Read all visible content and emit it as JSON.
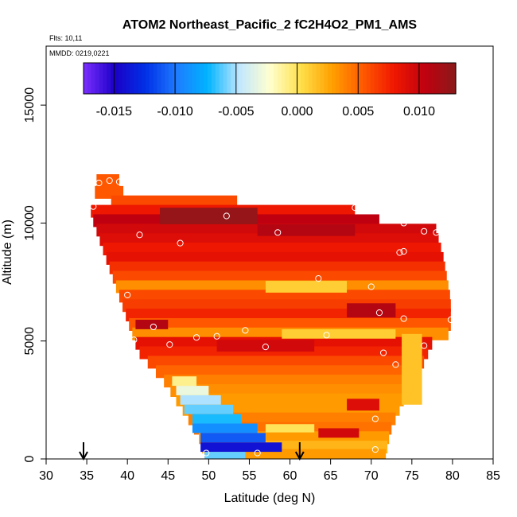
{
  "chart_data": {
    "type": "heatmap",
    "title": "ATOM2 Northeast_Pacific_2 fC2H4O2_PM1_AMS",
    "flights_label": "Flts: 10,11",
    "dates_label": "MMDD: 0219,0221",
    "xlabel": "Latitude (deg N)",
    "ylabel": "Altitude (m)",
    "xlim": [
      30,
      85
    ],
    "ylim": [
      0,
      17500
    ],
    "xticks": [
      30,
      35,
      40,
      45,
      50,
      55,
      60,
      65,
      70,
      75,
      80,
      85
    ],
    "xtick_labels": [
      "30",
      "35",
      "40",
      "45",
      "50",
      "55",
      "60",
      "65",
      "70",
      "75",
      "80",
      "85"
    ],
    "yticks": [
      0,
      5000,
      10000,
      15000
    ],
    "ytick_labels": [
      "0",
      "5000",
      "10000",
      "15000"
    ],
    "colorbar": {
      "range": [
        -0.0175,
        0.013
      ],
      "ticks": [
        -0.015,
        -0.01,
        -0.005,
        0.0,
        0.005,
        0.01
      ],
      "tick_labels": [
        "-0.015",
        "-0.010",
        "-0.005",
        "0.000",
        "0.005",
        "0.010"
      ],
      "colors": [
        "#7b2fff",
        "#1b00c8",
        "#0030e6",
        "#1e7bff",
        "#00b4ff",
        "#bfe6ff",
        "#ffffd0",
        "#ffe04a",
        "#ffa000",
        "#ff5a00",
        "#f01800",
        "#c00010",
        "#8a1a1a"
      ]
    },
    "arrows_latitude": [
      34.6,
      61.2
    ],
    "rows": [
      {
        "alt": 11800,
        "lat_min": 36.2,
        "lat_max": 39.0,
        "value": 0.0055
      },
      {
        "alt": 11300,
        "lat_min": 36.0,
        "lat_max": 39.5,
        "value": 0.0055
      },
      {
        "alt": 10900,
        "lat_min": 38.0,
        "lat_max": 53.5,
        "value": 0.006
      },
      {
        "alt": 10500,
        "lat_min": 35.5,
        "lat_max": 68.0,
        "value": 0.008
      },
      {
        "alt": 10100,
        "lat_min": 35.8,
        "lat_max": 71.0,
        "value": 0.0105
      },
      {
        "alt": 9700,
        "lat_min": 36.2,
        "lat_max": 78.0,
        "value": 0.0095
      },
      {
        "alt": 9300,
        "lat_min": 36.6,
        "lat_max": 78.3,
        "value": 0.009
      },
      {
        "alt": 8900,
        "lat_min": 37.0,
        "lat_max": 78.6,
        "value": 0.008
      },
      {
        "alt": 8500,
        "lat_min": 37.4,
        "lat_max": 78.9,
        "value": 0.0085
      },
      {
        "alt": 8100,
        "lat_min": 37.8,
        "lat_max": 79.1,
        "value": 0.007
      },
      {
        "alt": 7700,
        "lat_min": 38.2,
        "lat_max": 79.3,
        "value": 0.006
      },
      {
        "alt": 7300,
        "lat_min": 38.6,
        "lat_max": 79.5,
        "value": 0.0035
      },
      {
        "alt": 6900,
        "lat_min": 39.0,
        "lat_max": 79.7,
        "value": 0.006
      },
      {
        "alt": 6500,
        "lat_min": 39.4,
        "lat_max": 79.8,
        "value": 0.0065
      },
      {
        "alt": 6100,
        "lat_min": 39.8,
        "lat_max": 79.8,
        "value": 0.0075
      },
      {
        "alt": 5700,
        "lat_min": 40.2,
        "lat_max": 79.8,
        "value": 0.0055
      },
      {
        "alt": 5300,
        "lat_min": 40.6,
        "lat_max": 79.5,
        "value": 0.0035
      },
      {
        "alt": 4900,
        "lat_min": 41.0,
        "lat_max": 77.5,
        "value": 0.0085
      },
      {
        "alt": 4500,
        "lat_min": 41.5,
        "lat_max": 77.0,
        "value": 0.0075
      },
      {
        "alt": 4100,
        "lat_min": 42.5,
        "lat_max": 76.5,
        "value": 0.006
      },
      {
        "alt": 3700,
        "lat_min": 43.5,
        "lat_max": 75.5,
        "value": 0.005
      },
      {
        "alt": 3300,
        "lat_min": 44.5,
        "lat_max": 75.0,
        "value": 0.004
      },
      {
        "alt": 2900,
        "lat_min": 45.3,
        "lat_max": 74.5,
        "value": 0.0035
      },
      {
        "alt": 2500,
        "lat_min": 46.0,
        "lat_max": 74.0,
        "value": 0.003
      },
      {
        "alt": 2100,
        "lat_min": 46.8,
        "lat_max": 73.5,
        "value": 0.003
      },
      {
        "alt": 1700,
        "lat_min": 47.5,
        "lat_max": 73.0,
        "value": 0.004
      },
      {
        "alt": 1300,
        "lat_min": 48.2,
        "lat_max": 72.5,
        "value": 0.0045
      },
      {
        "alt": 900,
        "lat_min": 48.8,
        "lat_max": 72.2,
        "value": 0.003
      },
      {
        "alt": 500,
        "lat_min": 49.2,
        "lat_max": 72.0,
        "value": 0.002
      },
      {
        "alt": 150,
        "lat_min": 49.5,
        "lat_max": 71.8,
        "value": 0.003
      }
    ],
    "features": [
      {
        "lat": 50,
        "alt": 10300,
        "width_deg": 12,
        "height_m": 700,
        "value": 0.0125
      },
      {
        "lat": 62,
        "alt": 9700,
        "width_deg": 12,
        "height_m": 500,
        "value": 0.011
      },
      {
        "lat": 70,
        "alt": 6300,
        "width_deg": 6,
        "height_m": 600,
        "value": 0.011
      },
      {
        "lat": 43,
        "alt": 5700,
        "width_deg": 4,
        "height_m": 400,
        "value": 0.011
      },
      {
        "lat": 57,
        "alt": 4800,
        "width_deg": 12,
        "height_m": 500,
        "value": 0.0095
      },
      {
        "lat": 62,
        "alt": 7300,
        "width_deg": 10,
        "height_m": 500,
        "value": 0.001
      },
      {
        "lat": 66,
        "alt": 5300,
        "width_deg": 14,
        "height_m": 400,
        "value": 0.001
      },
      {
        "lat": 75,
        "alt": 3800,
        "width_deg": 2.5,
        "height_m": 3000,
        "value": 0.0015
      },
      {
        "lat": 47,
        "alt": 3300,
        "width_deg": 3,
        "height_m": 400,
        "value": -0.001
      },
      {
        "lat": 48,
        "alt": 2900,
        "width_deg": 4,
        "height_m": 400,
        "value": -0.003
      },
      {
        "lat": 49,
        "alt": 2500,
        "width_deg": 5,
        "height_m": 400,
        "value": -0.005
      },
      {
        "lat": 50,
        "alt": 2100,
        "width_deg": 6,
        "height_m": 400,
        "value": -0.006
      },
      {
        "lat": 51,
        "alt": 1700,
        "width_deg": 6,
        "height_m": 400,
        "value": -0.007
      },
      {
        "lat": 52,
        "alt": 1300,
        "width_deg": 8,
        "height_m": 400,
        "value": -0.009
      },
      {
        "lat": 53,
        "alt": 900,
        "width_deg": 8,
        "height_m": 400,
        "value": -0.011
      },
      {
        "lat": 54,
        "alt": 500,
        "width_deg": 10,
        "height_m": 400,
        "value": -0.014
      },
      {
        "lat": 52,
        "alt": 150,
        "width_deg": 5,
        "height_m": 300,
        "value": -0.006
      },
      {
        "lat": 60,
        "alt": 1300,
        "width_deg": 6,
        "height_m": 350,
        "value": 0.0
      },
      {
        "lat": 66,
        "alt": 1100,
        "width_deg": 5,
        "height_m": 400,
        "value": 0.0095
      },
      {
        "lat": 69,
        "alt": 2300,
        "width_deg": 4,
        "height_m": 500,
        "value": 0.009
      }
    ],
    "points": [
      {
        "lat": 36.5,
        "alt": 11700
      },
      {
        "lat": 37.8,
        "alt": 11800
      },
      {
        "lat": 39.0,
        "alt": 11750
      },
      {
        "lat": 35.8,
        "alt": 10700
      },
      {
        "lat": 52.2,
        "alt": 10300
      },
      {
        "lat": 68.0,
        "alt": 10650
      },
      {
        "lat": 74.0,
        "alt": 10000
      },
      {
        "lat": 41.5,
        "alt": 9500
      },
      {
        "lat": 46.5,
        "alt": 9150
      },
      {
        "lat": 58.5,
        "alt": 9600
      },
      {
        "lat": 76.5,
        "alt": 9650
      },
      {
        "lat": 78.0,
        "alt": 9600
      },
      {
        "lat": 73.5,
        "alt": 8750
      },
      {
        "lat": 74.0,
        "alt": 8800
      },
      {
        "lat": 63.5,
        "alt": 7650
      },
      {
        "lat": 70.0,
        "alt": 7300
      },
      {
        "lat": 40.0,
        "alt": 6950
      },
      {
        "lat": 71.0,
        "alt": 6200
      },
      {
        "lat": 74.0,
        "alt": 5950
      },
      {
        "lat": 79.8,
        "alt": 5900
      },
      {
        "lat": 43.2,
        "alt": 5600
      },
      {
        "lat": 54.5,
        "alt": 5450
      },
      {
        "lat": 51.0,
        "alt": 5200
      },
      {
        "lat": 48.5,
        "alt": 5150
      },
      {
        "lat": 64.5,
        "alt": 5250
      },
      {
        "lat": 40.8,
        "alt": 5050
      },
      {
        "lat": 45.2,
        "alt": 4850
      },
      {
        "lat": 57.0,
        "alt": 4750
      },
      {
        "lat": 76.5,
        "alt": 4800
      },
      {
        "lat": 71.5,
        "alt": 4500
      },
      {
        "lat": 77.5,
        "alt": 4300
      },
      {
        "lat": 73.0,
        "alt": 4000
      },
      {
        "lat": 70.5,
        "alt": 1700
      },
      {
        "lat": 49.7,
        "alt": 250
      },
      {
        "lat": 56.0,
        "alt": 250
      },
      {
        "lat": 70.5,
        "alt": 400
      }
    ]
  }
}
